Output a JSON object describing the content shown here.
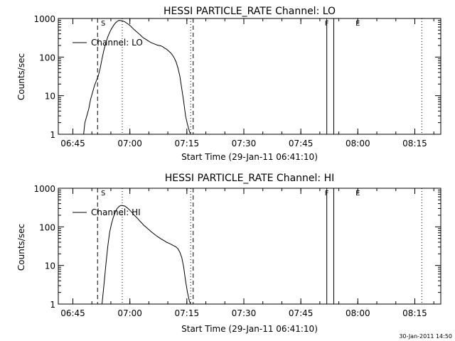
{
  "footer_timestamp": "30-Jan-2011 14:50",
  "chart_data": [
    {
      "type": "line",
      "title": "HESSI PARTICLE_RATE Channel: LO",
      "xlabel": "Start Time (29-Jan-11 06:41:10)",
      "ylabel": "Counts/sec",
      "yscale": "log",
      "ylim": [
        1,
        1000
      ],
      "xlim": [
        "06:41:10",
        "08:21:50"
      ],
      "x_ticks": [
        "06:45",
        "07:00",
        "07:15",
        "07:30",
        "07:45",
        "08:00",
        "08:15"
      ],
      "y_ticks": [
        "1",
        "10",
        "100",
        "1000"
      ],
      "legend": "Channel: LO",
      "legend_position": "top-left",
      "markers": {
        "S": "06:53:00",
        "F": "07:51:50",
        "E": "08:00:00"
      },
      "dashed_lines": [
        "06:51:30",
        "07:16:40"
      ],
      "dotted_lines": [
        "06:58:00",
        "07:16:00",
        "08:16:50"
      ],
      "solid_lines": [
        "07:51:50",
        "07:53:40"
      ],
      "series": [
        {
          "name": "Channel: LO",
          "x": [
            "06:47:50",
            "06:48:10",
            "06:48:40",
            "06:49:10",
            "06:49:40",
            "06:50:10",
            "06:50:40",
            "06:51:10",
            "06:51:40",
            "06:52:10",
            "06:52:40",
            "06:53:10",
            "06:53:40",
            "06:54:10",
            "06:54:40",
            "06:55:10",
            "06:55:40",
            "06:56:10",
            "06:56:40",
            "06:57:10",
            "06:57:40",
            "06:58:10",
            "06:58:40",
            "06:59:10",
            "06:59:40",
            "07:00:10",
            "07:00:40",
            "07:01:10",
            "07:01:40",
            "07:02:10",
            "07:02:40",
            "07:03:10",
            "07:03:40",
            "07:04:10",
            "07:04:40",
            "07:05:10",
            "07:05:40",
            "07:06:10",
            "07:06:40",
            "07:07:10",
            "07:07:40",
            "07:08:10",
            "07:08:40",
            "07:09:10",
            "07:09:40",
            "07:10:10",
            "07:10:40",
            "07:11:10",
            "07:11:40",
            "07:12:10",
            "07:12:40",
            "07:13:10",
            "07:13:40",
            "07:14:10",
            "07:14:40",
            "07:15:10",
            "07:15:40",
            "07:16:00",
            "07:16:10"
          ],
          "values": [
            1,
            2,
            3,
            4.5,
            8,
            12,
            18,
            24,
            32,
            50,
            90,
            150,
            230,
            330,
            430,
            540,
            650,
            760,
            840,
            890,
            880,
            860,
            820,
            760,
            700,
            640,
            570,
            510,
            460,
            420,
            380,
            340,
            310,
            290,
            270,
            250,
            235,
            225,
            215,
            205,
            200,
            195,
            185,
            170,
            160,
            145,
            130,
            115,
            95,
            75,
            52,
            32,
            15,
            7,
            3,
            1.8,
            1.2,
            1,
            1
          ]
        }
      ]
    },
    {
      "type": "line",
      "title": "HESSI PARTICLE_RATE Channel: HI",
      "xlabel": "Start Time (29-Jan-11 06:41:10)",
      "ylabel": "Counts/sec",
      "yscale": "log",
      "ylim": [
        1,
        1000
      ],
      "xlim": [
        "06:41:10",
        "08:21:50"
      ],
      "x_ticks": [
        "06:45",
        "07:00",
        "07:15",
        "07:30",
        "07:45",
        "08:00",
        "08:15"
      ],
      "y_ticks": [
        "1",
        "10",
        "100",
        "1000"
      ],
      "legend": "Channel: HI",
      "legend_position": "top-left",
      "markers": {
        "S": "06:53:00",
        "F": "07:51:50",
        "E": "08:00:00"
      },
      "dashed_lines": [
        "06:51:30",
        "07:16:40"
      ],
      "dotted_lines": [
        "06:58:00",
        "07:16:00",
        "08:16:50"
      ],
      "solid_lines": [
        "07:51:50",
        "07:53:40"
      ],
      "series": [
        {
          "name": "Channel: HI",
          "x": [
            "06:52:40",
            "06:53:10",
            "06:53:40",
            "06:54:10",
            "06:54:40",
            "06:55:10",
            "06:55:40",
            "06:56:10",
            "06:56:40",
            "06:57:10",
            "06:57:40",
            "06:58:10",
            "06:58:40",
            "06:59:10",
            "06:59:40",
            "07:00:10",
            "07:00:40",
            "07:01:10",
            "07:01:40",
            "07:02:10",
            "07:02:40",
            "07:03:10",
            "07:03:40",
            "07:04:10",
            "07:04:40",
            "07:05:10",
            "07:05:40",
            "07:06:10",
            "07:06:40",
            "07:07:10",
            "07:07:40",
            "07:08:10",
            "07:08:40",
            "07:09:10",
            "07:09:40",
            "07:10:10",
            "07:10:40",
            "07:11:10",
            "07:11:40",
            "07:12:10",
            "07:12:40",
            "07:13:10",
            "07:13:40",
            "07:14:10",
            "07:14:40",
            "07:15:10",
            "07:15:40",
            "07:16:00"
          ],
          "values": [
            1,
            3,
            10,
            30,
            70,
            120,
            180,
            240,
            300,
            340,
            360,
            355,
            345,
            320,
            290,
            260,
            230,
            200,
            180,
            160,
            140,
            125,
            110,
            100,
            90,
            82,
            74,
            68,
            62,
            57,
            53,
            49,
            46,
            43,
            40,
            38,
            36,
            34,
            32,
            30,
            27,
            22,
            16,
            9,
            4,
            2,
            1.2,
            1
          ]
        }
      ]
    }
  ]
}
